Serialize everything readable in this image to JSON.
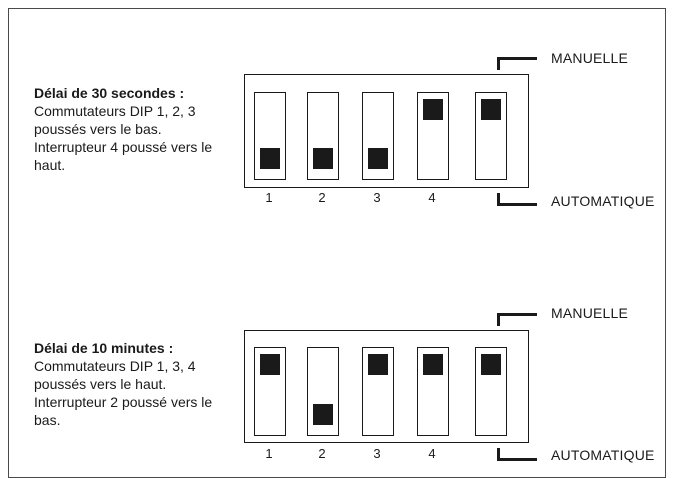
{
  "diagrams": [
    {
      "title": "Délai de 30 secondes :",
      "body": "Commutateurs DIP 1, 2, 3 poussés vers le bas. Interrupteur 4 poussé vers le haut.",
      "switches": [
        {
          "number": "1",
          "state": "bas"
        },
        {
          "number": "2",
          "state": "bas"
        },
        {
          "number": "3",
          "state": "bas"
        },
        {
          "number": "4",
          "state": "haut"
        },
        {
          "number": "",
          "state": "haut"
        }
      ],
      "label_top": "MANUELLE",
      "label_bottom": "AUTOMATIQUE"
    },
    {
      "title": "Délai de 10 minutes :",
      "body": "Commutateurs DIP 1, 3, 4 poussés vers le haut. Interrupteur 2 poussé vers le bas.",
      "switches": [
        {
          "number": "1",
          "state": "haut"
        },
        {
          "number": "2",
          "state": "bas"
        },
        {
          "number": "3",
          "state": "haut"
        },
        {
          "number": "4",
          "state": "haut"
        },
        {
          "number": "",
          "state": "haut"
        }
      ],
      "label_top": "MANUELLE",
      "label_bottom": "AUTOMATIQUE"
    }
  ]
}
